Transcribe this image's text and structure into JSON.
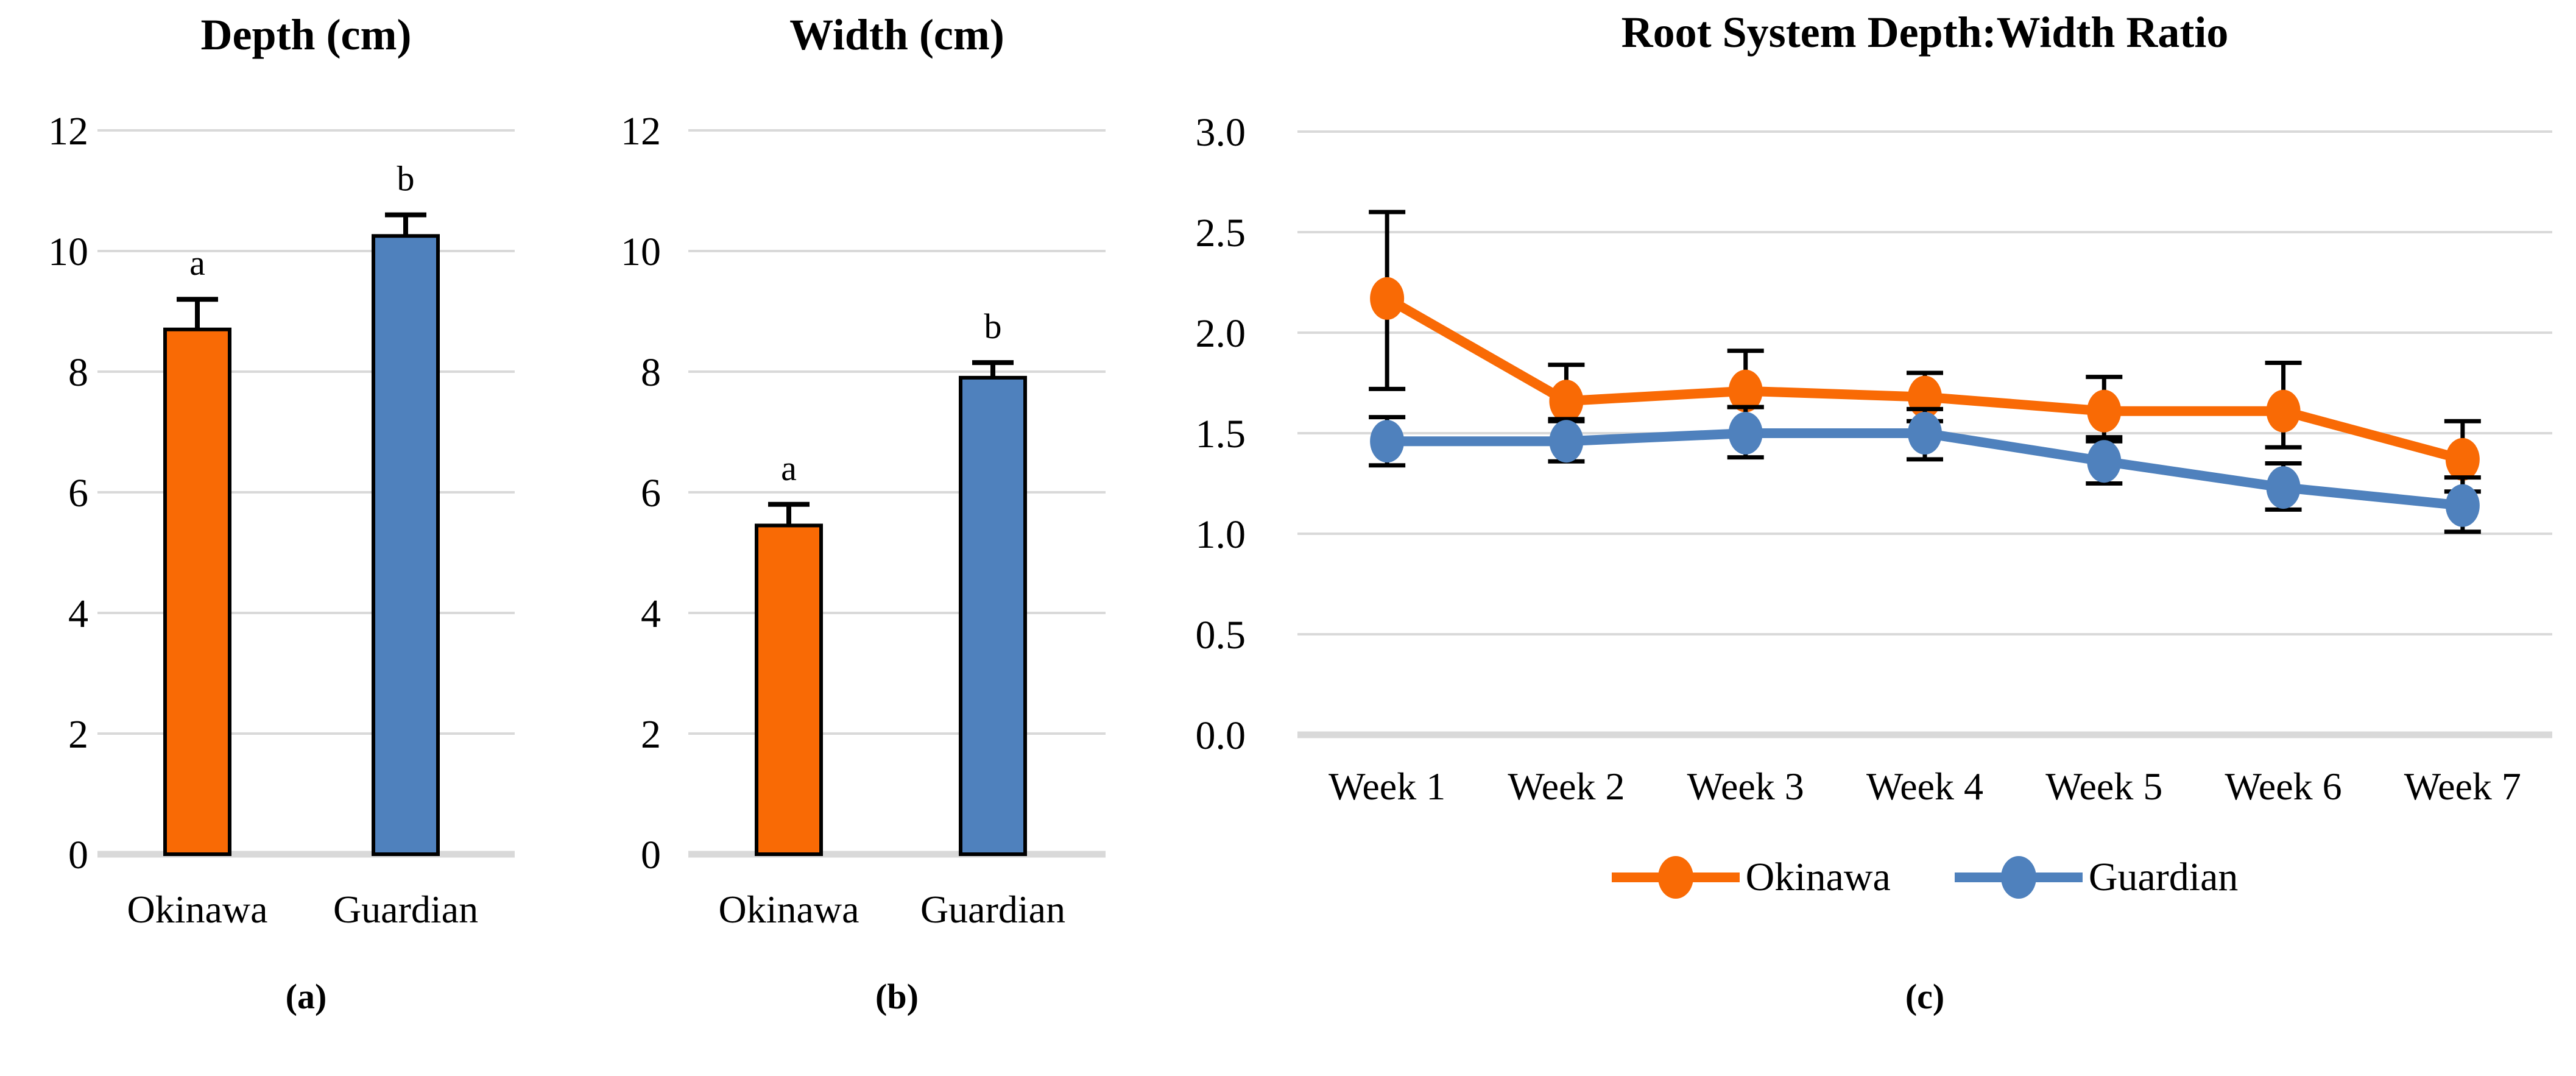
{
  "figure": {
    "description": "Three-panel root system growth figure",
    "colors": {
      "series_orange": "#F96A05",
      "series_blue": "#4F81BD",
      "gridline": "#D9D9D9",
      "error_bar": "#000000",
      "bar_outline": "#000000"
    }
  },
  "chart_data": [
    {
      "type": "bar",
      "panel": "a",
      "title": "Depth (cm)",
      "caption": "(a)",
      "categories": [
        "Okinawa",
        "Guardian"
      ],
      "values": [
        8.7,
        10.25
      ],
      "error_up": [
        0.5,
        0.35
      ],
      "sig_letters": [
        "a",
        "b"
      ],
      "bar_colors": [
        "#F96A05",
        "#4F81BD"
      ],
      "ylim": [
        0,
        12
      ],
      "ytick_step": 2,
      "ytick_labels": [
        "0",
        "2",
        "4",
        "6",
        "8",
        "10",
        "12"
      ],
      "grid": true
    },
    {
      "type": "bar",
      "panel": "b",
      "title": "Width (cm)",
      "caption": "(b)",
      "categories": [
        "Okinawa",
        "Guardian"
      ],
      "values": [
        5.45,
        7.9
      ],
      "error_up": [
        0.35,
        0.25
      ],
      "sig_letters": [
        "a",
        "b"
      ],
      "bar_colors": [
        "#F96A05",
        "#4F81BD"
      ],
      "ylim": [
        0,
        12
      ],
      "ytick_step": 2,
      "ytick_labels": [
        "0",
        "2",
        "4",
        "6",
        "8",
        "10",
        "12"
      ],
      "grid": true
    },
    {
      "type": "line",
      "panel": "c",
      "title": "Root System Depth:Width Ratio",
      "caption": "(c)",
      "x_labels": [
        "Week 1",
        "Week 2",
        "Week 3",
        "Week 4",
        "Week 5",
        "Week 6",
        "Week 7"
      ],
      "series": [
        {
          "name": "Okinawa",
          "color": "#F96A05",
          "values": [
            2.17,
            1.66,
            1.71,
            1.68,
            1.61,
            1.61,
            1.37
          ],
          "error_low": [
            1.72,
            1.56,
            1.63,
            1.56,
            1.46,
            1.43,
            1.21
          ],
          "error_high": [
            2.6,
            1.84,
            1.91,
            1.8,
            1.78,
            1.85,
            1.56
          ]
        },
        {
          "name": "Guardian",
          "color": "#4F81BD",
          "values": [
            1.46,
            1.46,
            1.5,
            1.5,
            1.36,
            1.23,
            1.14
          ],
          "error_low": [
            1.34,
            1.36,
            1.38,
            1.37,
            1.25,
            1.12,
            1.01
          ],
          "error_high": [
            1.58,
            1.57,
            1.63,
            1.62,
            1.48,
            1.35,
            1.28
          ]
        }
      ],
      "ylim": [
        0.0,
        3.0
      ],
      "ytick_step": 0.5,
      "ytick_labels": [
        "0.0",
        "0.5",
        "1.0",
        "1.5",
        "2.0",
        "2.5",
        "3.0"
      ],
      "legend_position": "bottom",
      "grid": true
    }
  ]
}
